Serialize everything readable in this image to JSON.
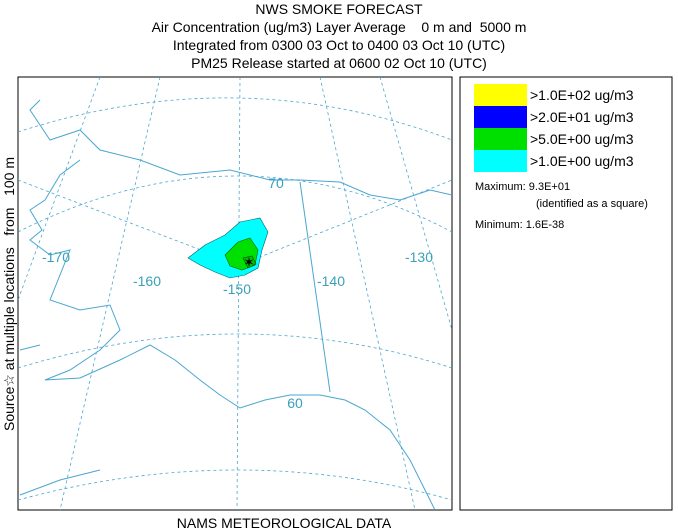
{
  "header": {
    "title": "NWS SMOKE FORECAST",
    "lines": [
      "Air Concentration (ug/m3) Layer Average    0 m and  5000 m",
      "Integrated from 0300 03 Oct to 0400 03 Oct 10 (UTC)",
      "PM25 Release started at 0600 02 Oct 10 (UTC)"
    ]
  },
  "side_label": "Source☆ at multiple locations   from   100 m",
  "footer": "NAMS METEOROLOGICAL DATA",
  "map": {
    "labels": [
      "-170",
      "-160",
      "-150",
      "-140",
      "-130",
      "70",
      "60"
    ]
  },
  "legend": {
    "items": [
      {
        "label": ">1.0E+02 ug/m3",
        "color": "#ffff00"
      },
      {
        "label": ">2.0E+01 ug/m3",
        "color": "#0000ff"
      },
      {
        "label": ">5.0E+00 ug/m3",
        "color": "#00e000"
      },
      {
        "label": ">1.0E+00 ug/m3",
        "color": "#00ffff"
      }
    ],
    "maximum": "Maximum: 9.3E+01",
    "maximum_note": "(identified as a square)",
    "minimum": "Minimum: 1.6E-38"
  }
}
